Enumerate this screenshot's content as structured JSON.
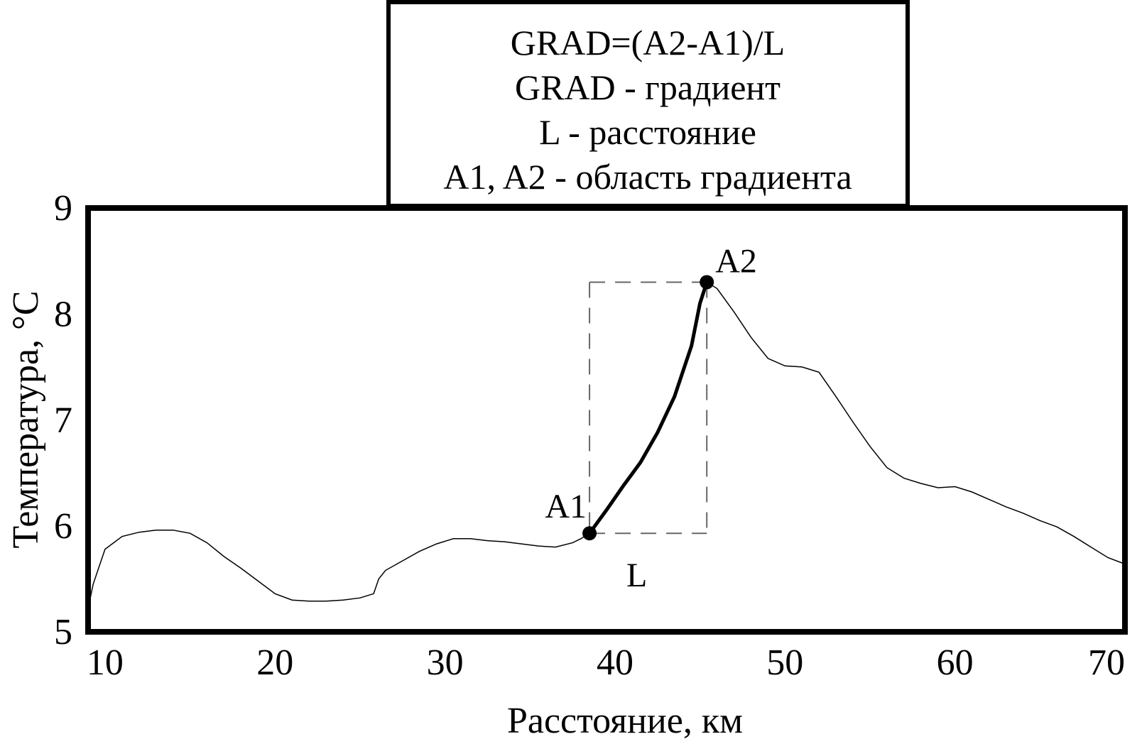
{
  "chart_data": {
    "type": "line",
    "title": "",
    "xlabel": "Расстояние, км",
    "ylabel": "Температура, °С",
    "xlim": [
      9,
      70
    ],
    "ylim": [
      5,
      9
    ],
    "x_ticks": [
      10,
      20,
      30,
      40,
      50,
      60,
      70
    ],
    "y_ticks": [
      5,
      6,
      7,
      8,
      9
    ],
    "grid": false,
    "legend_box": {
      "placement": "top-center",
      "lines": [
        "GRAD=(A2-A1)/L",
        "GRAD - градиент",
        "L - расстояние",
        "A1, A2 - область градиента"
      ]
    },
    "series": [
      {
        "x": [
          9.0,
          9.3,
          10.0,
          11.0,
          12.0,
          13.0,
          14.0,
          15.0,
          16.0,
          17.0,
          18.0,
          19.0,
          20.0,
          21.0,
          22.0,
          23.0,
          24.0,
          25.0,
          25.8,
          26.1,
          26.5,
          27.5,
          28.5,
          29.5,
          30.5,
          31.5,
          32.5,
          33.5,
          34.5,
          35.5,
          36.5,
          37.5,
          38.0,
          38.5,
          39.5,
          40.5,
          41.5,
          42.5,
          43.5,
          44.5,
          45.0,
          45.4,
          46.0,
          47.0,
          48.0,
          49.0,
          50.0,
          51.0,
          52.0,
          53.0,
          54.0,
          55.0,
          56.0,
          57.0,
          58.0,
          59.0,
          60.0,
          61.0,
          62.0,
          63.0,
          64.0,
          65.0,
          66.0,
          67.0,
          68.0,
          69.0,
          70.0
        ],
        "y": [
          5.22,
          5.45,
          5.78,
          5.9,
          5.94,
          5.96,
          5.96,
          5.93,
          5.84,
          5.71,
          5.6,
          5.48,
          5.36,
          5.3,
          5.29,
          5.29,
          5.3,
          5.32,
          5.36,
          5.5,
          5.58,
          5.67,
          5.76,
          5.83,
          5.88,
          5.88,
          5.86,
          5.85,
          5.83,
          5.81,
          5.8,
          5.84,
          5.88,
          5.93,
          6.15,
          6.38,
          6.6,
          6.88,
          7.22,
          7.7,
          8.1,
          8.3,
          8.24,
          8.02,
          7.78,
          7.58,
          7.51,
          7.5,
          7.45,
          7.22,
          6.98,
          6.75,
          6.55,
          6.45,
          6.4,
          6.36,
          6.37,
          6.32,
          6.25,
          6.18,
          6.12,
          6.05,
          5.99,
          5.9,
          5.8,
          5.7,
          5.64
        ]
      }
    ],
    "highlight_segment": {
      "x_start": 38.5,
      "x_end": 45.4
    },
    "points": [
      {
        "label": "A1",
        "x": 38.5,
        "y": 5.93
      },
      {
        "label": "A2",
        "x": 45.4,
        "y": 8.3
      }
    ],
    "interval_label": "L"
  }
}
